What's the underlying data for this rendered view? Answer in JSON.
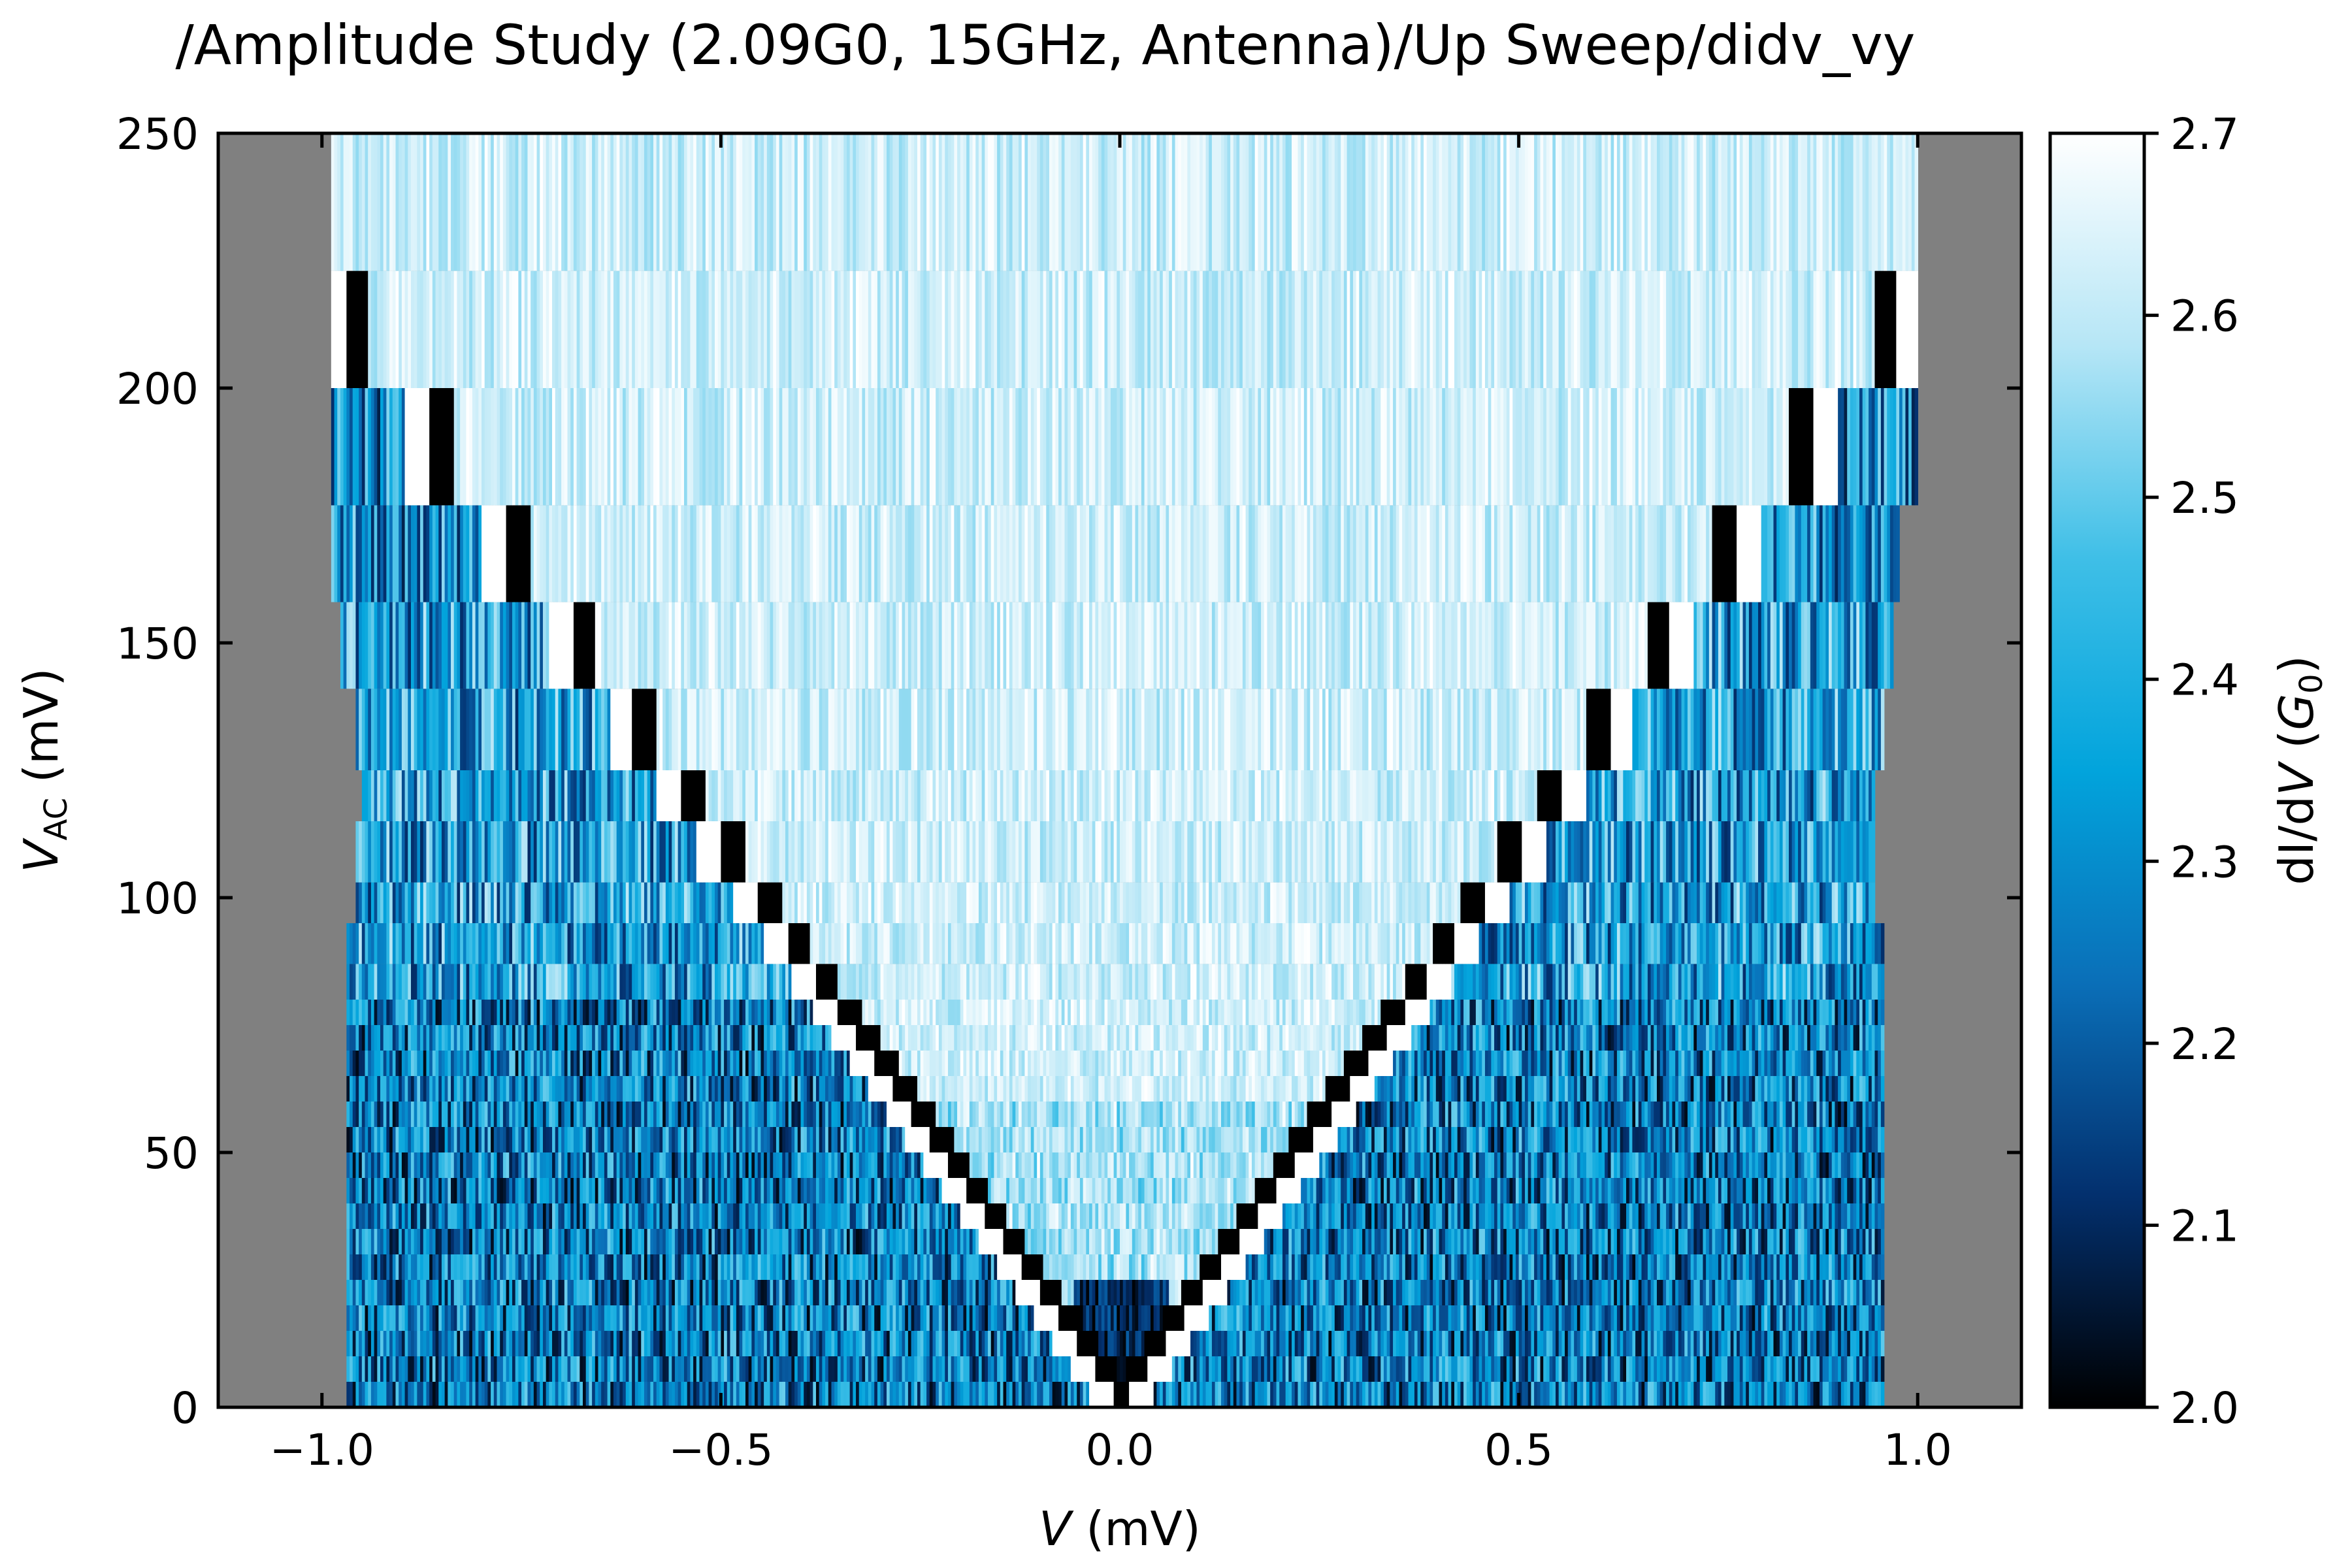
{
  "chart_data": {
    "type": "heatmap",
    "title": "/Amplitude Study (2.09G0, 15GHz, Antenna)/Up Sweep/didv_vy",
    "xlabel": {
      "var": "V",
      "unit": " (mV)"
    },
    "ylabel": {
      "var": "V",
      "sub": "AC",
      "unit": " (mV)"
    },
    "colorbar_label": {
      "prefix": "dI/d",
      "var": "V",
      "open": " (",
      "unit_var": "G",
      "unit_sub": "0",
      "close": ")"
    },
    "xlim": [
      -1.13,
      1.13
    ],
    "ylim": [
      0,
      250
    ],
    "xticks": [
      -1.0,
      -0.5,
      0.0,
      0.5,
      1.0
    ],
    "xtick_labels": [
      "−1.0",
      "−0.5",
      "0.0",
      "0.5",
      "1.0"
    ],
    "yticks": [
      0,
      50,
      100,
      150,
      200,
      250
    ],
    "ytick_labels": [
      "0",
      "50",
      "100",
      "150",
      "200",
      "250"
    ],
    "clim": [
      2.0,
      2.7
    ],
    "cticks": [
      2.0,
      2.1,
      2.2,
      2.3,
      2.4,
      2.5,
      2.6,
      2.7
    ],
    "ctick_labels": [
      "2.0",
      "2.1",
      "2.2",
      "2.3",
      "2.4",
      "2.5",
      "2.6",
      "2.7"
    ],
    "colormap": [
      "#000000",
      "#03306e",
      "#0a6fb8",
      "#02a4dc",
      "#3fbfe7",
      "#b6e6f6",
      "#ffffff"
    ],
    "background_color": "#808080",
    "data_x_extent": [
      -1.0,
      1.0
    ],
    "v_shape_slope_mV_per_mV": 0.0046,
    "amplitude_bands": [
      {
        "vac_range": [
          0,
          5
        ],
        "x_extent": [
          -0.97,
          0.96
        ]
      },
      {
        "vac_range": [
          5,
          10
        ],
        "x_extent": [
          -0.97,
          0.96
        ]
      },
      {
        "vac_range": [
          10,
          15
        ],
        "x_extent": [
          -0.97,
          0.96
        ]
      },
      {
        "vac_range": [
          15,
          20
        ],
        "x_extent": [
          -0.97,
          0.96
        ]
      },
      {
        "vac_range": [
          20,
          25
        ],
        "x_extent": [
          -0.97,
          0.96
        ]
      },
      {
        "vac_range": [
          25,
          30
        ],
        "x_extent": [
          -0.97,
          0.96
        ]
      },
      {
        "vac_range": [
          30,
          35
        ],
        "x_extent": [
          -0.97,
          0.96
        ]
      },
      {
        "vac_range": [
          35,
          40
        ],
        "x_extent": [
          -0.97,
          0.96
        ]
      },
      {
        "vac_range": [
          40,
          45
        ],
        "x_extent": [
          -0.97,
          0.96
        ]
      },
      {
        "vac_range": [
          45,
          50
        ],
        "x_extent": [
          -0.97,
          0.96
        ]
      },
      {
        "vac_range": [
          50,
          55
        ],
        "x_extent": [
          -0.97,
          0.96
        ]
      },
      {
        "vac_range": [
          55,
          60
        ],
        "x_extent": [
          -0.97,
          0.96
        ]
      },
      {
        "vac_range": [
          60,
          65
        ],
        "x_extent": [
          -0.97,
          0.96
        ]
      },
      {
        "vac_range": [
          65,
          70
        ],
        "x_extent": [
          -0.97,
          0.96
        ]
      },
      {
        "vac_range": [
          70,
          75
        ],
        "x_extent": [
          -0.97,
          0.96
        ]
      },
      {
        "vac_range": [
          75,
          80
        ],
        "x_extent": [
          -0.97,
          0.96
        ]
      },
      {
        "vac_range": [
          80,
          87
        ],
        "x_extent": [
          -0.97,
          0.96
        ]
      },
      {
        "vac_range": [
          87,
          95
        ],
        "x_extent": [
          -0.97,
          0.96
        ]
      },
      {
        "vac_range": [
          95,
          103
        ],
        "x_extent": [
          -0.96,
          0.95
        ]
      },
      {
        "vac_range": [
          103,
          115
        ],
        "x_extent": [
          -0.96,
          0.95
        ]
      },
      {
        "vac_range": [
          115,
          125
        ],
        "x_extent": [
          -0.95,
          0.95
        ]
      },
      {
        "vac_range": [
          125,
          141
        ],
        "x_extent": [
          -0.96,
          0.96
        ]
      },
      {
        "vac_range": [
          141,
          158
        ],
        "x_extent": [
          -0.98,
          0.97
        ]
      },
      {
        "vac_range": [
          158,
          177
        ],
        "x_extent": [
          -0.99,
          0.98
        ]
      },
      {
        "vac_range": [
          177,
          200
        ],
        "x_extent": [
          -0.99,
          1.0
        ]
      },
      {
        "vac_range": [
          200,
          223
        ],
        "x_extent": [
          -0.99,
          1.0
        ]
      },
      {
        "vac_range": [
          223,
          250
        ],
        "x_extent": [
          -0.99,
          1.0
        ]
      }
    ]
  }
}
